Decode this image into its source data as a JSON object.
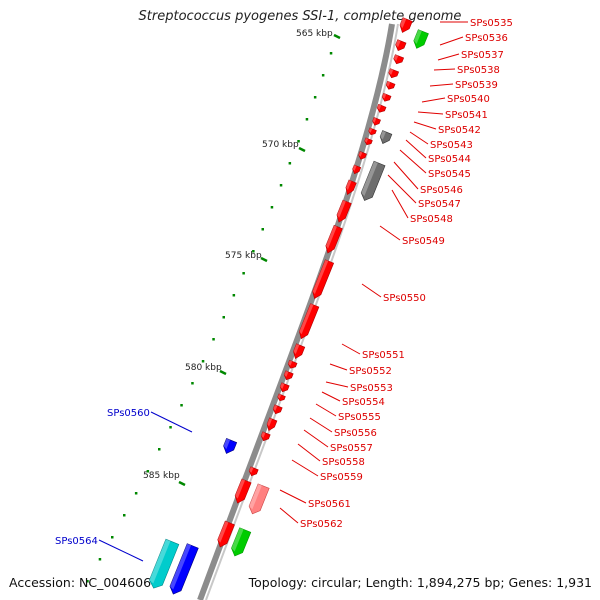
{
  "title": "Streptococcus pyogenes SSI-1, complete genome",
  "footer": {
    "accession": "Accession: NC_004606",
    "summary": "Topology: circular; Length: 1,894,275 bp; Genes: 1,931"
  },
  "colors": {
    "gene_red": "#ff0000",
    "gene_blue": "#0000ff",
    "gene_green": "#00cc00",
    "gene_cyan": "#00cccc",
    "gene_gray": "#6e6e6e",
    "gene_pink": "#ff8080",
    "tick_green": "#008800",
    "backbone": "#8c8c8c"
  },
  "scale_labels": [
    "565 kbp",
    "570 kbp",
    "575 kbp",
    "580 kbp",
    "585 kbp"
  ],
  "gene_labels_right": [
    "SPs0535",
    "SPs0536",
    "SPs0537",
    "SPs0538",
    "SPs0539",
    "SPs0540",
    "SPs0541",
    "SPs0542",
    "SPs0543",
    "SPs0544",
    "SPs0545",
    "SPs0546",
    "SPs0547",
    "SPs0548",
    "SPs0549",
    "SPs0550",
    "SPs0551",
    "SPs0552",
    "SPs0553",
    "SPs0554",
    "SPs0555",
    "SPs0556",
    "SPs0557",
    "SPs0558",
    "SPs0559",
    "SPs0561",
    "SPs0562"
  ],
  "gene_labels_left": [
    "SPs0560",
    "SPs0564"
  ]
}
